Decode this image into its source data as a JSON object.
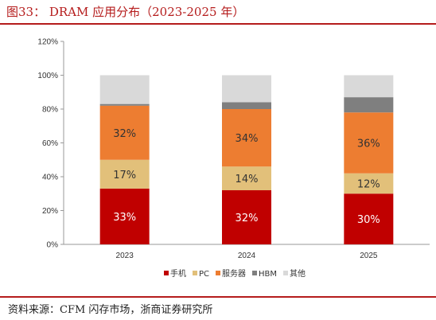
{
  "page": {
    "title": "图33：  DRAM 应用分布（2023-2025 年）",
    "source": "资料来源：CFM 闪存市场，浙商证券研究所"
  },
  "chart_data": {
    "type": "bar",
    "stacked": true,
    "title": "",
    "xlabel": "",
    "ylabel": "",
    "categories": [
      "2023",
      "2024",
      "2025"
    ],
    "ylim": [
      0,
      120
    ],
    "yticks": [
      "0%",
      "20%",
      "40%",
      "60%",
      "80%",
      "100%",
      "120%"
    ],
    "legend_position": "bottom",
    "series": [
      {
        "name": "手机",
        "values": [
          33,
          32,
          30
        ],
        "labels": [
          "33%",
          "32%",
          "30%"
        ],
        "color": "#c00000",
        "label_color": "#ffffff"
      },
      {
        "name": "PC",
        "values": [
          17,
          14,
          12
        ],
        "labels": [
          "17%",
          "14%",
          "12%"
        ],
        "color": "#e2c07a",
        "label_color": "#333333"
      },
      {
        "name": "服务器",
        "values": [
          32,
          34,
          36
        ],
        "labels": [
          "32%",
          "34%",
          "36%"
        ],
        "color": "#ed7d31",
        "label_color": "#333333"
      },
      {
        "name": "HBM",
        "values": [
          1,
          4,
          9
        ],
        "labels": [
          "",
          "",
          ""
        ],
        "color": "#7f7f7f",
        "label_color": "#ffffff"
      },
      {
        "name": "其他",
        "values": [
          17,
          16,
          13
        ],
        "labels": [
          "",
          "",
          ""
        ],
        "color": "#d9d9d9",
        "label_color": "#333333"
      }
    ]
  }
}
